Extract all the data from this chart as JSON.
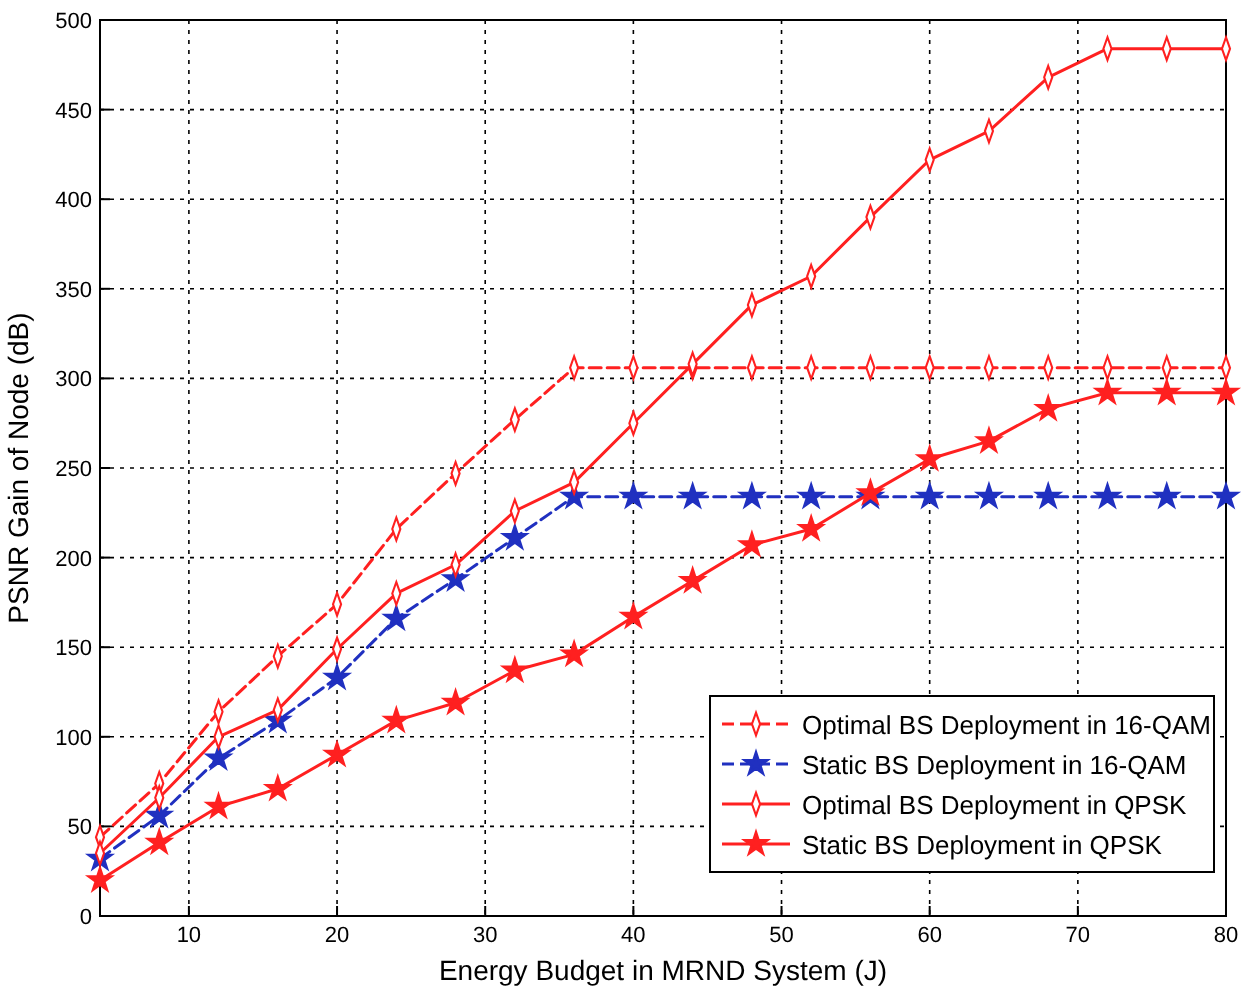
{
  "chart_data": {
    "type": "line",
    "xlabel": "Energy Budget in MRND System (J)",
    "ylabel": "PSNR Gain of Node (dB)",
    "x": [
      4,
      8,
      12,
      16,
      20,
      24,
      28,
      32,
      36,
      40,
      44,
      48,
      52,
      56,
      60,
      64,
      68,
      72,
      76,
      80
    ],
    "xlim": [
      4,
      80
    ],
    "xticks": [
      10,
      20,
      30,
      40,
      50,
      60,
      70,
      80
    ],
    "ylim": [
      0,
      500
    ],
    "yticks": [
      0,
      50,
      100,
      150,
      200,
      250,
      300,
      350,
      400,
      450,
      500
    ],
    "grid": true,
    "legend": "bottom right",
    "series": [
      {
        "name": "Optimal BS Deployment in 16-QAM",
        "color": "#ff2020",
        "marker": "diamond",
        "line_style": "dashed",
        "values": [
          44,
          74,
          114,
          145,
          174,
          216,
          247,
          277,
          306,
          306,
          306,
          306,
          306,
          306,
          306,
          306,
          306,
          306,
          306,
          306
        ]
      },
      {
        "name": "Static BS Deployment in 16-QAM",
        "color": "#2030c0",
        "marker": "star",
        "line_style": "dashed",
        "values": [
          32,
          56,
          88,
          109,
          133,
          166,
          188,
          211,
          234,
          234,
          234,
          234,
          234,
          234,
          234,
          234,
          234,
          234,
          234,
          234
        ]
      },
      {
        "name": "Optimal BS Deployment in QPSK",
        "color": "#ff2020",
        "marker": "diamond",
        "line_style": "solid",
        "values": [
          35,
          66,
          100,
          115,
          149,
          180,
          196,
          226,
          242,
          275,
          308,
          341,
          357,
          390,
          422,
          438,
          468,
          484,
          484,
          484
        ]
      },
      {
        "name": "Static BS Deployment in QPSK",
        "color": "#ff2020",
        "marker": "star",
        "line_style": "solid",
        "values": [
          20,
          41,
          61,
          71,
          90,
          109,
          119,
          137,
          146,
          167,
          187,
          207,
          216,
          236,
          255,
          265,
          283,
          292,
          292,
          292
        ]
      }
    ]
  }
}
